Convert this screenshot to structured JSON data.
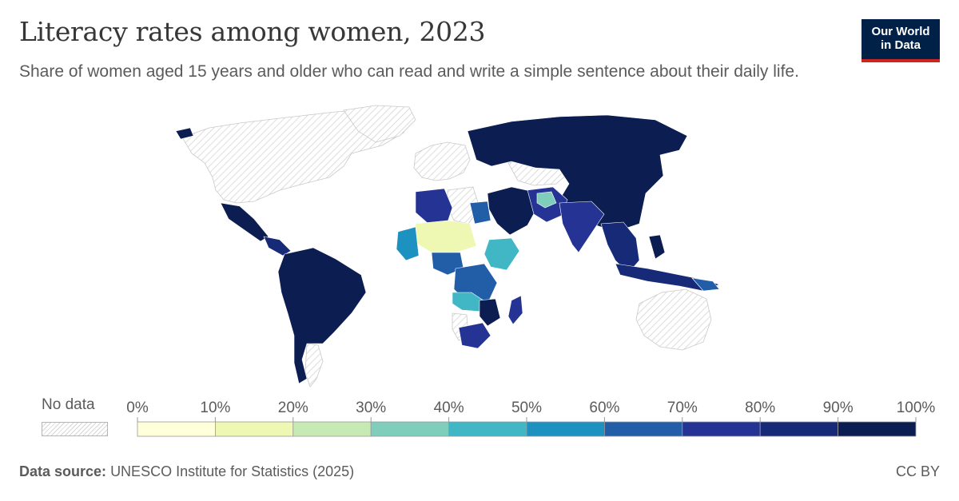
{
  "header": {
    "title": "Literacy rates among women, 2023",
    "subtitle": "Share of women aged 15 years and older who can read and write a simple sentence about their daily life."
  },
  "logo": {
    "line1": "Our World",
    "line2": "in Data"
  },
  "legend": {
    "no_data_label": "No data",
    "ticks": [
      "0%",
      "10%",
      "20%",
      "30%",
      "40%",
      "50%",
      "60%",
      "70%",
      "80%",
      "90%",
      "100%"
    ],
    "bins": [
      {
        "from": 0,
        "to": 10,
        "color": "#ffffd9"
      },
      {
        "from": 10,
        "to": 20,
        "color": "#eef8b2"
      },
      {
        "from": 20,
        "to": 30,
        "color": "#c7e9b4"
      },
      {
        "from": 30,
        "to": 40,
        "color": "#7fcdbb"
      },
      {
        "from": 40,
        "to": 50,
        "color": "#41b6c4"
      },
      {
        "from": 50,
        "to": 60,
        "color": "#1d91c0"
      },
      {
        "from": 60,
        "to": 70,
        "color": "#225ea8"
      },
      {
        "from": 70,
        "to": 80,
        "color": "#253494"
      },
      {
        "from": 80,
        "to": 90,
        "color": "#172a78"
      },
      {
        "from": 90,
        "to": 100,
        "color": "#0b1d51"
      }
    ],
    "no_data_color": "#e6e6e6"
  },
  "footer": {
    "source_label": "Data source:",
    "source_text": "UNESCO Institute for Statistics (2025)",
    "license": "CC BY"
  }
}
